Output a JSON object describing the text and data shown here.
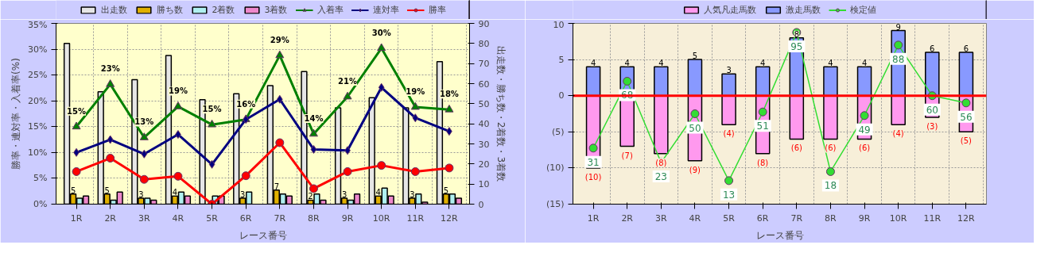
{
  "chart_data": [
    {
      "type": "bar",
      "xlabel": "レース番号",
      "ylabel": "勝率・連対率・入着率(%)",
      "y2label": "出走数・勝ち数・2着数・3着数",
      "categories": [
        "1R",
        "2R",
        "3R",
        "4R",
        "5R",
        "6R",
        "7R",
        "8R",
        "9R",
        "10R",
        "11R",
        "12R"
      ],
      "ylim": [
        0,
        35
      ],
      "yticks": [
        {
          "value": 0,
          "label": "0%"
        },
        {
          "value": 5,
          "label": "5%"
        },
        {
          "value": 10,
          "label": "10%"
        },
        {
          "value": 15,
          "label": "15%"
        },
        {
          "value": 20,
          "label": "20%"
        },
        {
          "value": 25,
          "label": "25%"
        },
        {
          "value": 30,
          "label": "30%"
        },
        {
          "value": 35,
          "label": "35%"
        }
      ],
      "y2lim": [
        0,
        90
      ],
      "y2ticks": [
        0,
        10,
        20,
        30,
        40,
        50,
        60,
        70,
        80,
        90
      ],
      "grid": true,
      "legend": "top",
      "series": [
        {
          "name": "出走数",
          "type": "bar",
          "axis": "y2",
          "color": "#e6e6e6",
          "values": [
            80,
            56,
            62,
            74,
            52,
            55,
            59,
            66,
            48,
            53,
            48,
            71
          ]
        },
        {
          "name": "勝ち数",
          "type": "bar",
          "axis": "y2",
          "color": "#e0b000",
          "values": [
            5,
            5,
            3,
            4,
            0,
            3,
            7,
            2,
            3,
            4,
            3,
            5
          ],
          "value_labels": [
            "5",
            "5",
            "3",
            "4",
            null,
            "3",
            "7",
            "2",
            "3",
            "4",
            "3",
            "5"
          ]
        },
        {
          "name": "2着数",
          "type": "bar",
          "axis": "y2",
          "color": "#b0f0f0",
          "values": [
            3,
            2,
            3,
            6,
            4,
            6,
            5,
            5,
            2,
            8,
            5,
            5
          ]
        },
        {
          "name": "3着数",
          "type": "bar",
          "axis": "y2",
          "color": "#ee88cc",
          "values": [
            4,
            6,
            2,
            4,
            4,
            0,
            4,
            2,
            5,
            4,
            1,
            3
          ]
        },
        {
          "name": "入着率",
          "type": "line",
          "marker": "triangle",
          "color": "#008000",
          "values": [
            15.0,
            23.2,
            12.9,
            18.9,
            15.4,
            16.4,
            28.8,
            13.6,
            20.8,
            30.2,
            18.8,
            18.3
          ],
          "value_labels": [
            "15%",
            "23%",
            "13%",
            "19%",
            "15%",
            "16%",
            "29%",
            "14%",
            "21%",
            "30%",
            "19%",
            "18%"
          ]
        },
        {
          "name": "連対率",
          "type": "line",
          "marker": "diamond",
          "color": "#000080",
          "values": [
            10.0,
            12.5,
            9.7,
            13.5,
            7.7,
            16.4,
            20.3,
            10.6,
            10.4,
            22.6,
            16.7,
            14.1
          ]
        },
        {
          "name": "勝率",
          "type": "line",
          "marker": "circle",
          "color": "#ff0000",
          "values": [
            6.3,
            8.9,
            4.8,
            5.4,
            0,
            5.5,
            11.9,
            3.0,
            6.3,
            7.5,
            6.3,
            7.0
          ]
        }
      ]
    },
    {
      "type": "bar",
      "xlabel": "レース番号",
      "categories": [
        "1R",
        "2R",
        "3R",
        "4R",
        "5R",
        "6R",
        "7R",
        "8R",
        "9R",
        "10R",
        "11R",
        "12R"
      ],
      "stacked": true,
      "ylim": [
        -15,
        10
      ],
      "yticks": [
        {
          "value": -15,
          "label": "(15)"
        },
        {
          "value": -10,
          "label": "(10)"
        },
        {
          "value": -5,
          "label": "(5)"
        },
        0,
        5,
        10
      ],
      "y2lim": [
        0,
        100
      ],
      "tick_labels": "xy",
      "grid": true,
      "legend": "top",
      "ref_lines": [
        {
          "axis": "y",
          "value": 0,
          "color": "#ff0000"
        }
      ],
      "series": [
        {
          "name": "人気凡走馬数",
          "type": "bar",
          "color": "#ff99ee",
          "values": [
            -10,
            -7,
            -8,
            -9,
            -4,
            -8,
            -6,
            -6,
            -6,
            -4,
            -3,
            -5
          ],
          "value_labels": [
            "(10)",
            "(7)",
            "(8)",
            "(9)",
            "(4)",
            "(8)",
            "(6)",
            "(6)",
            "(6)",
            "(4)",
            "(3)",
            "(5)"
          ]
        },
        {
          "name": "激走馬数",
          "type": "bar",
          "color": "#8899ff",
          "values": [
            4,
            4,
            4,
            5,
            3,
            4,
            8,
            4,
            4,
            9,
            6,
            6
          ],
          "value_labels": [
            "4",
            "4",
            "4",
            "5",
            "3",
            "4",
            "8",
            "4",
            "4",
            "9",
            "6",
            "6"
          ]
        },
        {
          "name": "検定値",
          "type": "line",
          "axis": "y2",
          "marker": "circle",
          "color": "#33dd33",
          "values": [
            31,
            68,
            23,
            50,
            13,
            51,
            95,
            18,
            49,
            88,
            60,
            56
          ],
          "value_labels": [
            "31",
            "68",
            "23",
            "50",
            "13",
            "51",
            "95",
            "18",
            "49",
            "88",
            "60",
            "56"
          ]
        }
      ]
    }
  ]
}
